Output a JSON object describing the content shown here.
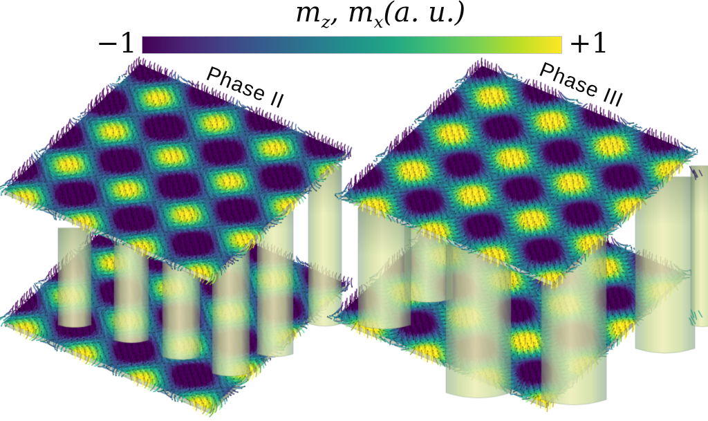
{
  "header": {
    "title": {
      "m1": "m",
      "sub1": "z",
      "sep": ", ",
      "m2": "m",
      "sub2": "x",
      "suffix": "(a. u.)"
    },
    "colorbar": {
      "min_label": "−1",
      "max_label": "+1",
      "colormap": "viridis",
      "stops": [
        "#440154",
        "#482475",
        "#414487",
        "#355f8d",
        "#2a788e",
        "#21918c",
        "#22a884",
        "#44bf70",
        "#7ad151",
        "#bddf26",
        "#fde725"
      ]
    }
  },
  "panels": [
    {
      "id": "phase-II",
      "label": "Phase II",
      "spin_texture": "bloch-swirl"
    },
    {
      "id": "phase-III",
      "label": "Phase III",
      "spin_texture": "neel-radial"
    }
  ]
}
